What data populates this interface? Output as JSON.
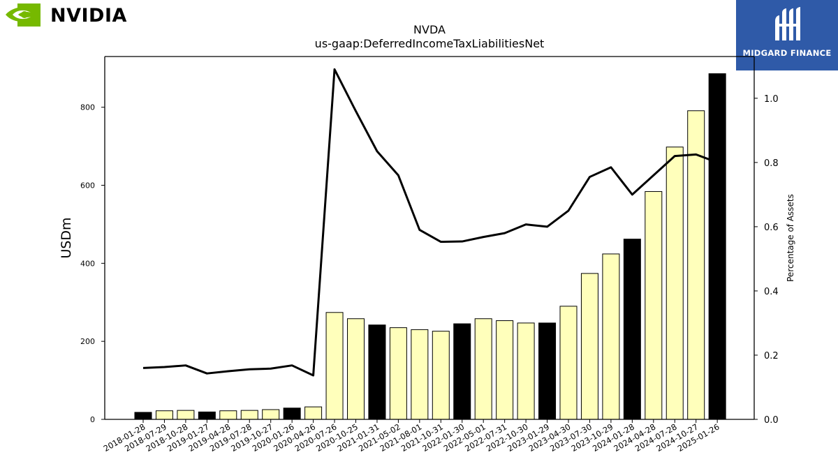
{
  "brand_logo": {
    "name": "NVIDIA",
    "color": "#76b900"
  },
  "watermark_logo": {
    "text": "MIDGARD FINANCE",
    "color": "#2f5aa8"
  },
  "chart_data": {
    "type": "bar",
    "title": "NVDA",
    "subtitle": "us-gaap:DeferredIncomeTaxLiabilitiesNet",
    "ylabel": "USDm",
    "ylabel_right": "Percentage of Assets",
    "ylim": [
      0,
      930
    ],
    "ylim_right": [
      0,
      1.13
    ],
    "yticks": [
      0,
      200,
      400,
      600,
      800
    ],
    "yticks_right": [
      "0.0",
      "0.2",
      "0.4",
      "0.6",
      "0.8",
      "1.0"
    ],
    "categories": [
      "2018-01-28",
      "2018-07-29",
      "2018-10-28",
      "2019-01-27",
      "2019-04-28",
      "2019-07-28",
      "2019-10-27",
      "2020-01-26",
      "2020-04-26",
      "2020-07-26",
      "2020-10-25",
      "2021-01-31",
      "2021-05-02",
      "2021-08-01",
      "2021-10-31",
      "2022-01-30",
      "2022-05-01",
      "2022-07-31",
      "2022-10-30",
      "2023-01-29",
      "2023-04-30",
      "2023-07-30",
      "2023-10-29",
      "2024-01-28",
      "2024-04-28",
      "2024-07-28",
      "2024-10-27",
      "2025-01-26"
    ],
    "values": [
      18,
      22,
      23,
      19,
      22,
      23,
      25,
      29,
      32,
      274,
      258,
      242,
      235,
      230,
      226,
      245,
      258,
      253,
      247,
      247,
      290,
      374,
      424,
      462,
      584,
      698,
      791,
      886
    ],
    "fiscal_year_end": [
      true,
      false,
      false,
      true,
      false,
      false,
      false,
      true,
      false,
      false,
      false,
      true,
      false,
      false,
      false,
      true,
      false,
      false,
      false,
      true,
      false,
      false,
      false,
      true,
      false,
      false,
      false,
      true
    ],
    "pct_of_assets": [
      0.16,
      0.163,
      0.168,
      0.143,
      0.15,
      0.156,
      0.158,
      0.168,
      0.137,
      1.09,
      0.96,
      0.835,
      0.76,
      0.59,
      0.553,
      0.554,
      0.568,
      0.58,
      0.607,
      0.6,
      0.65,
      0.755,
      0.785,
      0.7,
      0.76,
      0.82,
      0.825,
      0.8
    ],
    "colors": {
      "fiscal_year_bar": "#000000",
      "quarter_bar": "#ffffbb",
      "line": "#000000"
    },
    "grid": false,
    "legend": "none"
  }
}
